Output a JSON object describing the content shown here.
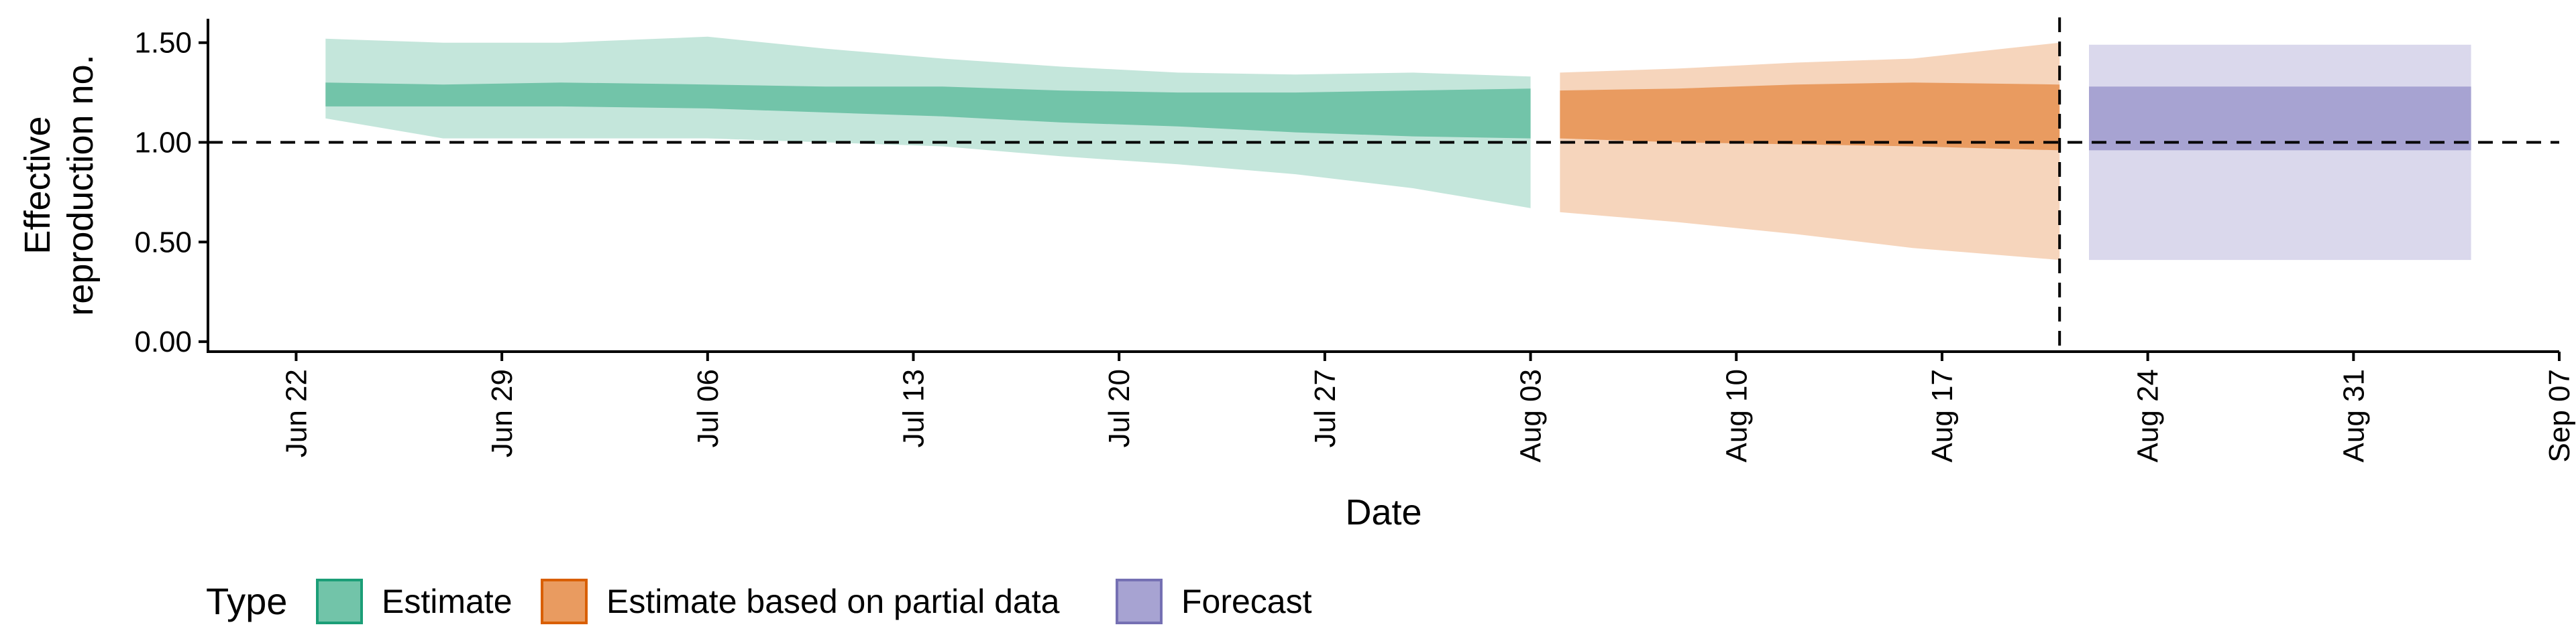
{
  "chart_data": {
    "type": "area",
    "xlabel": "Date",
    "ylabel_lines": [
      "Effective",
      "reproduction no."
    ],
    "y_ticks": [
      0.0,
      0.5,
      1.0,
      1.5
    ],
    "y_tick_labels": [
      "0.00",
      "0.50",
      "1.00",
      "1.50"
    ],
    "ylim": [
      -0.05,
      1.62
    ],
    "xlim": [
      "2020-06-19",
      "2020-09-07"
    ],
    "x_ticks": [
      "2020-06-22",
      "2020-06-29",
      "2020-07-06",
      "2020-07-13",
      "2020-07-20",
      "2020-07-27",
      "2020-08-03",
      "2020-08-10",
      "2020-08-17",
      "2020-08-24",
      "2020-08-31",
      "2020-09-07"
    ],
    "x_tick_labels": [
      "Jun 22",
      "Jun 29",
      "Jul 06",
      "Jul 13",
      "Jul 20",
      "Jul 27",
      "Aug 03",
      "Aug 10",
      "Aug 17",
      "Aug 24",
      "Aug 31",
      "Sep 07"
    ],
    "reference_line_y": 1.0,
    "vline_x": "2020-08-21",
    "grid": false,
    "legend": {
      "title": "Type",
      "position": "bottom",
      "entries": [
        {
          "label": "Estimate",
          "fill": "#72c4a9",
          "border": "#1b9e77"
        },
        {
          "label": "Estimate based on partial data",
          "fill": "#e99b60",
          "border": "#d95f02"
        },
        {
          "label": "Forecast",
          "fill": "#a7a3d2",
          "border": "#7570b3"
        }
      ]
    },
    "series": [
      {
        "name": "Estimate",
        "color": "#1b9e77",
        "x": [
          "2020-06-23",
          "2020-06-27",
          "2020-07-01",
          "2020-07-06",
          "2020-07-10",
          "2020-07-14",
          "2020-07-18",
          "2020-07-22",
          "2020-07-26",
          "2020-07-30",
          "2020-08-03"
        ],
        "lower_90": [
          1.12,
          1.02,
          1.02,
          1.02,
          1.0,
          0.98,
          0.93,
          0.89,
          0.84,
          0.77,
          0.67
        ],
        "upper_90": [
          1.52,
          1.5,
          1.5,
          1.53,
          1.47,
          1.42,
          1.38,
          1.35,
          1.34,
          1.35,
          1.33
        ],
        "lower_50": [
          1.18,
          1.18,
          1.18,
          1.17,
          1.15,
          1.13,
          1.1,
          1.08,
          1.05,
          1.03,
          1.02
        ],
        "upper_50": [
          1.3,
          1.29,
          1.3,
          1.29,
          1.28,
          1.28,
          1.26,
          1.25,
          1.25,
          1.26,
          1.27
        ]
      },
      {
        "name": "Estimate based on partial data",
        "color": "#d95f02",
        "x": [
          "2020-08-04",
          "2020-08-08",
          "2020-08-12",
          "2020-08-16",
          "2020-08-21"
        ],
        "lower_90": [
          0.65,
          0.6,
          0.54,
          0.47,
          0.41
        ],
        "upper_90": [
          1.35,
          1.37,
          1.4,
          1.42,
          1.5
        ],
        "lower_50": [
          1.02,
          1.0,
          0.99,
          0.98,
          0.96
        ],
        "upper_50": [
          1.26,
          1.27,
          1.29,
          1.3,
          1.29
        ]
      },
      {
        "name": "Forecast",
        "color": "#7570b3",
        "x": [
          "2020-08-22",
          "2020-09-04"
        ],
        "lower_90": [
          0.41,
          0.41
        ],
        "upper_90": [
          1.49,
          1.49
        ],
        "lower_50": [
          0.96,
          0.96
        ],
        "upper_50": [
          1.28,
          1.28
        ]
      }
    ]
  }
}
